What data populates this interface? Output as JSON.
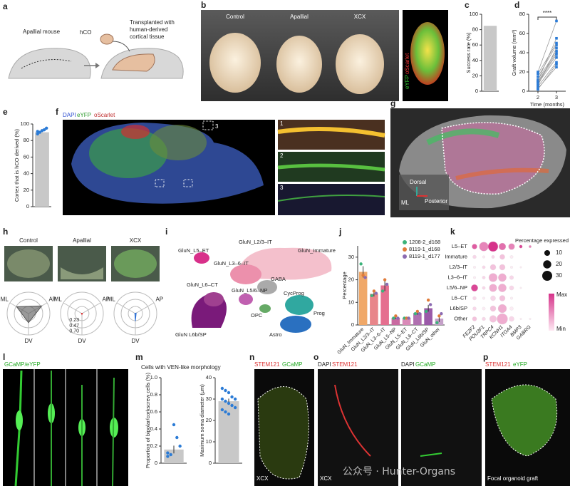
{
  "panel_labels": [
    "a",
    "b",
    "c",
    "d",
    "e",
    "f",
    "g",
    "h",
    "i",
    "j",
    "k",
    "l",
    "m",
    "n",
    "o",
    "p"
  ],
  "panels": {
    "a": {
      "mouse": "Apallial mouse",
      "hco": "hCO",
      "transplant": [
        "Transplanted with",
        "human-derived",
        "cortical tissue"
      ]
    },
    "b": {
      "conditions": [
        "Control",
        "Apallial",
        "XCX"
      ],
      "stain": [
        "eYFP",
        "oScarlet"
      ]
    },
    "f": {
      "stain": [
        "DAPI",
        "eYFP",
        "oScarlet"
      ],
      "box": "3",
      "insets": [
        "1",
        "2",
        "3"
      ]
    },
    "g": {
      "axes": [
        "Dorsal",
        "ML",
        "Posterior"
      ]
    },
    "i": {
      "clusters": [
        "GluN_L5–ET",
        "GluN_L2/3–IT",
        "GluN_Immature",
        "GluN_L3–6–IT",
        "GABA",
        "GluN_L6–CT",
        "GluN_L5/6–NP",
        "OPC",
        "CycProg",
        "Prog",
        "GluN L6b/SP",
        "Astro"
      ]
    },
    "l": {
      "stain": "GCaMP/eYFP"
    },
    "n": {
      "stain": [
        "STEM121",
        "GCaMP"
      ],
      "sample": "XCX"
    },
    "o": {
      "left_stain": [
        "DAPI",
        "STEM121"
      ],
      "right_stain": [
        "DAPI",
        "GCaMP"
      ],
      "sample": "XCX"
    },
    "p": {
      "stain": [
        "STEM121",
        "eYFP"
      ],
      "caption": "Focal organoid graft"
    },
    "watermark": "公众号 · Hunter-Organs"
  },
  "chart_data": [
    {
      "type": "bar",
      "ylabel": "Success rate (%)",
      "values": [
        85
      ],
      "color": "#c8c8c8",
      "ylim": [
        0,
        100
      ],
      "yticks": [
        0,
        20,
        40,
        60,
        80,
        100
      ]
    },
    {
      "type": "line",
      "ylabel": "Graft volume (mm³)",
      "xlabel": "Time (months)",
      "annotation": "****",
      "x": [
        2,
        3
      ],
      "xlim": [
        1.5,
        3.5
      ],
      "xticks": [
        2,
        3
      ],
      "ylim": [
        0,
        80
      ],
      "yticks": [
        0,
        20,
        40,
        60,
        80
      ],
      "color": "#2b7bd6",
      "line_color": "#999999",
      "series": [
        {
          "values": [
            3,
            25
          ]
        },
        {
          "values": [
            5,
            30
          ]
        },
        {
          "values": [
            8,
            35
          ]
        },
        {
          "values": [
            10,
            40
          ]
        },
        {
          "values": [
            12,
            42
          ]
        },
        {
          "values": [
            2,
            28
          ]
        },
        {
          "values": [
            15,
            48
          ]
        },
        {
          "values": [
            6,
            45
          ]
        },
        {
          "values": [
            18,
            50
          ]
        },
        {
          "values": [
            11,
            55
          ]
        },
        {
          "values": [
            9,
            38
          ]
        },
        {
          "values": [
            20,
            73
          ]
        }
      ]
    },
    {
      "type": "bar",
      "ylabel": "Cortex that is hCO derived (%)",
      "values": [
        90
      ],
      "points": [
        88,
        90,
        92,
        93,
        95,
        91
      ],
      "point_color": "#2b7bd6",
      "color": "#c8c8c8",
      "ylim": [
        0,
        100
      ],
      "yticks": [
        0,
        20,
        40,
        60,
        80,
        100
      ]
    },
    {
      "type": "radar",
      "title": "Control",
      "axes": [
        "ML",
        "AP",
        "DV"
      ],
      "values": [
        0.45,
        0.5,
        0.3
      ],
      "rlim": [
        0,
        0.7
      ],
      "color": "#555555"
    },
    {
      "type": "radar",
      "title": "Apallial",
      "axes": [
        "ML",
        "AP",
        "DV"
      ],
      "values": [
        0.02,
        0.02,
        0.03
      ],
      "rlim": [
        0,
        0.7
      ],
      "color": "#d62728",
      "rticks": [
        0.23,
        0.47,
        {
          "value": 0.7,
          "label": "0.70"
        }
      ]
    },
    {
      "type": "radar",
      "title": "XCX",
      "axes": [
        "ML",
        "AP",
        "DV"
      ],
      "values": [
        0.02,
        0.03,
        0.25
      ],
      "rlim": [
        0,
        0.7
      ],
      "color": "#2b6fd6"
    },
    {
      "type": "bar",
      "ylabel": "Percentage",
      "categories": [
        "GluN_Immature",
        "GluN_L2/3–IT",
        "GluN_L3–6–IT",
        "GluN_L5–NP",
        "GluN_L5–ET",
        "GluN_L6–CT",
        "GluN_L6b/SP",
        "GluN_other"
      ],
      "values": [
        23.5,
        13.8,
        17.5,
        3.2,
        3.1,
        5.3,
        7.4,
        2.8
      ],
      "errors": [
        2.5,
        1.2,
        2.5,
        0.5,
        0.4,
        0.8,
        1.5,
        1.5
      ],
      "colors": [
        "#f0a868",
        "#e8868a",
        "#e56f8f",
        "#c86aa0",
        "#d98ab8",
        "#b070b0",
        "#9a5aa8",
        "#c4a0c8"
      ],
      "ylim": [
        0,
        35
      ],
      "yticks": [
        0,
        10,
        20,
        30
      ],
      "series": [
        {
          "name": "1208-2_d168",
          "color": "#3bb37a",
          "values": [
            27,
            13,
            15,
            3,
            3,
            5,
            6,
            1
          ]
        },
        {
          "name": "8119-1_d168",
          "color": "#e07b39",
          "values": [
            22,
            15,
            20,
            4,
            3,
            6,
            11,
            4
          ]
        },
        {
          "name": "8119-1_d177",
          "color": "#8c6bb1",
          "values": [
            21,
            14,
            18,
            3,
            3,
            5,
            9,
            5
          ]
        }
      ]
    },
    {
      "type": "dot",
      "rows": [
        "L5–ET",
        "Immature",
        "L2/3–IT",
        "L3–6–IT",
        "L5/6–NP",
        "L6–CT",
        "L6b/SP",
        "Other"
      ],
      "columns": [
        "FEZF2",
        "POU3F1",
        "TRPC4",
        "KCNH1",
        "ITGA4",
        "BMP3",
        "GABRG"
      ],
      "pct": [
        [
          8,
          25,
          30,
          15,
          12,
          3,
          2
        ],
        [
          4,
          2,
          3,
          8,
          3,
          0,
          0
        ],
        [
          2,
          3,
          10,
          10,
          2,
          1,
          0
        ],
        [
          2,
          3,
          22,
          20,
          5,
          0,
          0
        ],
        [
          14,
          3,
          18,
          20,
          6,
          1,
          0
        ],
        [
          4,
          2,
          8,
          10,
          2,
          0,
          0
        ],
        [
          4,
          3,
          10,
          22,
          4,
          0,
          0
        ],
        [
          6,
          4,
          15,
          35,
          8,
          1,
          1
        ]
      ],
      "expr": [
        [
          0.8,
          0.6,
          1,
          0.7,
          0.6,
          0.9,
          0.6
        ],
        [
          0.2,
          0.1,
          0.2,
          0.3,
          0.1,
          0,
          0
        ],
        [
          0.1,
          0.2,
          0.3,
          0.3,
          0.1,
          0.1,
          0
        ],
        [
          0.1,
          0.2,
          0.4,
          0.4,
          0.2,
          0,
          0
        ],
        [
          0.9,
          0.2,
          0.4,
          0.4,
          0.2,
          0.1,
          0
        ],
        [
          0.2,
          0.1,
          0.2,
          0.3,
          0.1,
          0,
          0
        ],
        [
          0.2,
          0.1,
          0.3,
          0.4,
          0.1,
          0,
          0
        ],
        [
          0.3,
          0.2,
          0.3,
          0.4,
          0.2,
          0.1,
          0.1
        ]
      ],
      "color": "#d6338a",
      "size_title": "Percentage expressed",
      "size_legend": [
        10,
        20,
        30
      ],
      "colorbar": [
        "Max",
        "Min"
      ]
    },
    {
      "type": "bar",
      "title": "Cells with VEN-like morphology",
      "ylabel": "Proportion of bipolar/corkscrew cells (%)",
      "values": [
        0.16
      ],
      "errors": [
        0.045
      ],
      "points": [
        0.08,
        0.1,
        0.45,
        0.3,
        0.2,
        0.12
      ],
      "point_color": "#2b7bd6",
      "color": "#c8c8c8",
      "ylim": [
        0,
        1
      ],
      "yticks": [
        0,
        0.2,
        0.4,
        0.6,
        0.8,
        {
          "value": 1,
          "label": "1.0"
        }
      ]
    },
    {
      "type": "bar",
      "ylabel": "Maximum soma diameter (μm)",
      "values": [
        29
      ],
      "errors": [
        1.2
      ],
      "points": [
        35,
        34,
        33,
        31,
        30,
        30,
        29,
        28,
        27,
        26,
        25,
        24,
        23
      ],
      "point_color": "#2b7bd6",
      "color": "#c8c8c8",
      "ylim": [
        0,
        40
      ],
      "yticks": [
        0,
        10,
        20,
        30,
        40
      ]
    }
  ]
}
